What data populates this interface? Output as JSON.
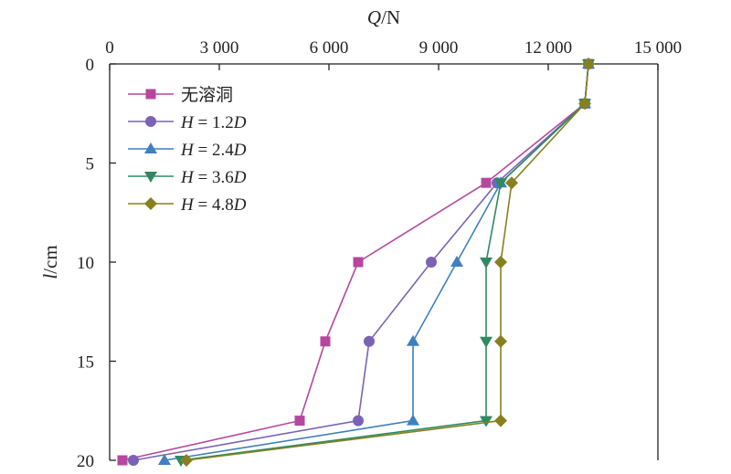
{
  "chart_data": {
    "type": "line",
    "title": "",
    "x_axis": {
      "label_italic": "Q",
      "label_unit": "/N",
      "position": "top",
      "range": [
        0,
        15000
      ],
      "ticks": [
        0,
        3000,
        6000,
        9000,
        12000,
        15000
      ],
      "tick_labels": [
        "0",
        "3 000",
        "6 000",
        "9 000",
        "12 000",
        "15 000"
      ]
    },
    "y_axis": {
      "label_italic": "l",
      "label_unit": "/cm",
      "inverted": true,
      "range": [
        0,
        20
      ],
      "ticks": [
        0,
        5,
        10,
        15,
        20
      ],
      "tick_labels": [
        "0",
        "5",
        "10",
        "15",
        "20"
      ]
    },
    "grid": false,
    "legend_position": "top-left",
    "series": [
      {
        "name": "无溶洞",
        "name_parts": [
          {
            "t": "无溶洞",
            "i": false
          }
        ],
        "color": "#b5479e",
        "marker": "square",
        "points": [
          [
            13100,
            0
          ],
          [
            13000,
            2
          ],
          [
            10300,
            6
          ],
          [
            6800,
            10
          ],
          [
            5900,
            14
          ],
          [
            5200,
            18
          ],
          [
            350,
            20
          ]
        ]
      },
      {
        "name": "H = 1.2D",
        "name_parts": [
          {
            "t": "H",
            "i": true
          },
          {
            "t": " = 1.2",
            "i": false
          },
          {
            "t": "D",
            "i": true
          }
        ],
        "color": "#7a63b3",
        "marker": "circle",
        "points": [
          [
            13100,
            0
          ],
          [
            13000,
            2
          ],
          [
            10600,
            6
          ],
          [
            8800,
            10
          ],
          [
            7100,
            14
          ],
          [
            6800,
            18
          ],
          [
            650,
            20
          ]
        ]
      },
      {
        "name": "H = 2.4D",
        "name_parts": [
          {
            "t": "H",
            "i": true
          },
          {
            "t": " = 2.4",
            "i": false
          },
          {
            "t": "D",
            "i": true
          }
        ],
        "color": "#3f7fc1",
        "marker": "triangle-up",
        "points": [
          [
            13100,
            0
          ],
          [
            13000,
            2
          ],
          [
            10700,
            6
          ],
          [
            9500,
            10
          ],
          [
            8300,
            14
          ],
          [
            8300,
            18
          ],
          [
            1500,
            20
          ]
        ]
      },
      {
        "name": "H = 3.6D",
        "name_parts": [
          {
            "t": "H",
            "i": true
          },
          {
            "t": " = 3.6",
            "i": false
          },
          {
            "t": "D",
            "i": true
          }
        ],
        "color": "#2e8a62",
        "marker": "triangle-down",
        "points": [
          [
            13100,
            0
          ],
          [
            13000,
            2
          ],
          [
            10700,
            6
          ],
          [
            10300,
            10
          ],
          [
            10300,
            14
          ],
          [
            10300,
            18
          ],
          [
            1950,
            20
          ]
        ]
      },
      {
        "name": "H = 4.8D",
        "name_parts": [
          {
            "t": "H",
            "i": true
          },
          {
            "t": " = 4.8",
            "i": false
          },
          {
            "t": "D",
            "i": true
          }
        ],
        "color": "#86801f",
        "marker": "diamond",
        "points": [
          [
            13100,
            0
          ],
          [
            13000,
            2
          ],
          [
            11000,
            6
          ],
          [
            10700,
            10
          ],
          [
            10700,
            14
          ],
          [
            10700,
            18
          ],
          [
            2100,
            20
          ]
        ]
      }
    ]
  }
}
